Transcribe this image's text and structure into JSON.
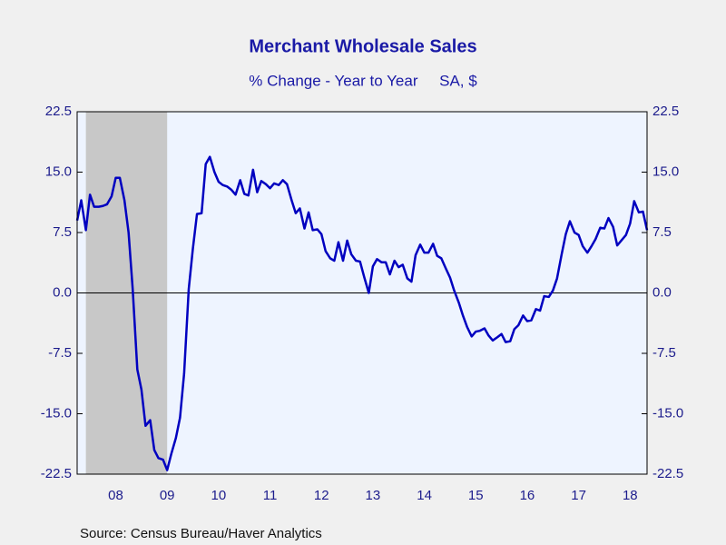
{
  "chart_data": {
    "type": "line",
    "title": "Merchant Wholesale Sales",
    "subtitle": "% Change - Year to Year     SA, $",
    "source": "Source:  Census Bureau/Haver Analytics",
    "recession": [
      2007.92,
      2009.5
    ],
    "xlim": [
      2007.75,
      2018.83
    ],
    "xticks": [
      {
        "value": 2008.5,
        "label": "08"
      },
      {
        "value": 2009.5,
        "label": "09"
      },
      {
        "value": 2010.5,
        "label": "10"
      },
      {
        "value": 2011.5,
        "label": "11"
      },
      {
        "value": 2012.5,
        "label": "12"
      },
      {
        "value": 2013.5,
        "label": "13"
      },
      {
        "value": 2014.5,
        "label": "14"
      },
      {
        "value": 2015.5,
        "label": "15"
      },
      {
        "value": 2016.5,
        "label": "16"
      },
      {
        "value": 2017.5,
        "label": "17"
      },
      {
        "value": 2018.5,
        "label": "18"
      }
    ],
    "ylim": [
      -22.5,
      22.5
    ],
    "yticks": [
      22.5,
      {
        "value": 15,
        "label": "15.0"
      },
      7.5,
      {
        "value": 0,
        "label": "0.0"
      },
      -7.5,
      {
        "value": -15,
        "label": "-15.0"
      },
      -22.5
    ],
    "y2lim": [
      -22.5,
      22.5
    ],
    "y2ticks": [
      22.5,
      {
        "value": 15,
        "label": "15.0"
      },
      7.5,
      {
        "value": 0,
        "label": "0.0"
      },
      -7.5,
      {
        "value": -15,
        "label": "-15.0"
      },
      -22.5
    ],
    "series": [
      {
        "color": "#0000c0",
        "x": [
          2007.75,
          2007.83,
          2007.92,
          2008.0,
          2008.08,
          2008.17,
          2008.25,
          2008.33,
          2008.42,
          2008.5,
          2008.58,
          2008.67,
          2008.75,
          2008.83,
          2008.92,
          2009.0,
          2009.08,
          2009.17,
          2009.25,
          2009.33,
          2009.42,
          2009.5,
          2009.58,
          2009.67,
          2009.75,
          2009.83,
          2009.92,
          2010.0,
          2010.08,
          2010.17,
          2010.25,
          2010.33,
          2010.42,
          2010.5,
          2010.58,
          2010.67,
          2010.75,
          2010.83,
          2010.92,
          2011.0,
          2011.08,
          2011.17,
          2011.25,
          2011.33,
          2011.42,
          2011.5,
          2011.58,
          2011.67,
          2011.75,
          2011.83,
          2011.92,
          2012.0,
          2012.08,
          2012.17,
          2012.25,
          2012.33,
          2012.42,
          2012.5,
          2012.58,
          2012.67,
          2012.75,
          2012.83,
          2012.92,
          2013.0,
          2013.08,
          2013.17,
          2013.25,
          2013.33,
          2013.42,
          2013.5,
          2013.58,
          2013.67,
          2013.75,
          2013.83,
          2013.92,
          2014.0,
          2014.08,
          2014.17,
          2014.25,
          2014.33,
          2014.42,
          2014.5,
          2014.58,
          2014.67,
          2014.75,
          2014.83,
          2014.92,
          2015.0,
          2015.08,
          2015.17,
          2015.25,
          2015.33,
          2015.42,
          2015.5,
          2015.58,
          2015.67,
          2015.75,
          2015.83,
          2015.92,
          2016.0,
          2016.08,
          2016.17,
          2016.25,
          2016.33,
          2016.42,
          2016.5,
          2016.58,
          2016.67,
          2016.75,
          2016.83,
          2016.92,
          2017.0,
          2017.08,
          2017.17,
          2017.25,
          2017.33,
          2017.42,
          2017.5,
          2017.58,
          2017.67,
          2017.75,
          2017.83,
          2017.92,
          2018.0,
          2018.08,
          2018.17,
          2018.25,
          2018.33,
          2018.42,
          2018.5,
          2018.58,
          2018.67,
          2018.75,
          2018.83
        ],
        "values": [
          9.0,
          11.5,
          7.8,
          12.2,
          10.7,
          10.7,
          10.8,
          11.0,
          12.0,
          14.3,
          14.3,
          11.5,
          7.5,
          0.5,
          -9.5,
          -12.0,
          -16.5,
          -15.8,
          -19.5,
          -20.5,
          -20.7,
          -22.0,
          -20.0,
          -18.0,
          -15.5,
          -10.0,
          0.5,
          5.5,
          9.8,
          9.9,
          16.0,
          16.9,
          15.0,
          13.8,
          13.4,
          13.2,
          12.8,
          12.2,
          14.0,
          12.3,
          12.1,
          15.3,
          12.5,
          13.9,
          13.5,
          13.0,
          13.6,
          13.4,
          14.0,
          13.5,
          11.5,
          9.9,
          10.5,
          8.0,
          10.0,
          7.8,
          7.9,
          7.3,
          5.2,
          4.3,
          4.0,
          6.3,
          4.0,
          6.5,
          4.8,
          4.0,
          3.9,
          2.0,
          0.0,
          3.3,
          4.2,
          3.8,
          3.8,
          2.3,
          4.0,
          3.2,
          3.5,
          1.8,
          1.4,
          4.7,
          6.0,
          5.0,
          5.0,
          6.1,
          4.6,
          4.3,
          3.0,
          1.9,
          0.3,
          -1.2,
          -2.8,
          -4.2,
          -5.4,
          -4.8,
          -4.7,
          -4.4,
          -5.3,
          -5.9,
          -5.5,
          -5.1,
          -6.1,
          -6.0,
          -4.5,
          -4.0,
          -2.8,
          -3.5,
          -3.4,
          -2.0,
          -2.2,
          -0.4,
          -0.5,
          0.3,
          1.8,
          4.8,
          7.3,
          8.9,
          7.5,
          7.2,
          5.8,
          5.0,
          5.8,
          6.7,
          8.1,
          8.0,
          9.3,
          8.2,
          5.9,
          6.5,
          7.2,
          8.6,
          11.4,
          10.0,
          10.1,
          7.8
        ]
      }
    ]
  }
}
